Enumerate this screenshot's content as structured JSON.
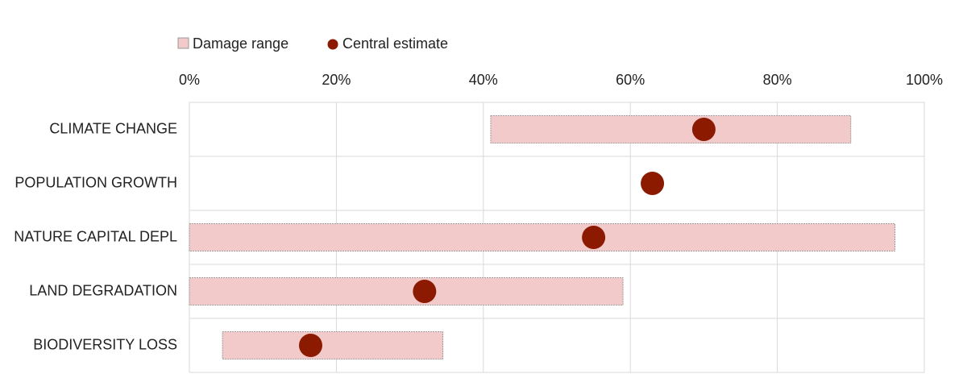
{
  "chart_data": {
    "type": "range",
    "categories": [
      "CLIMATE CHANGE",
      "POPULATION GROWTH",
      "NATURE CAPITAL DEPL",
      "LAND DEGRADATION",
      "BIODIVERSITY LOSS"
    ],
    "series": [
      {
        "name": "Damage range",
        "color": "#f2caca",
        "low": [
          41,
          null,
          0,
          0,
          4.5
        ],
        "high": [
          90,
          null,
          96,
          59,
          34.5
        ]
      },
      {
        "name": "Central estimate",
        "color": "#8b1a00",
        "values": [
          70,
          63,
          55,
          32,
          16.5
        ]
      }
    ],
    "xlim": [
      0,
      100
    ],
    "xticks": [
      {
        "value": 0,
        "label": "0%"
      },
      {
        "value": 20,
        "label": "20%"
      },
      {
        "value": 40,
        "label": "40%"
      },
      {
        "value": 60,
        "label": "60%"
      },
      {
        "value": 80,
        "label": "80%"
      },
      {
        "value": 100,
        "label": "100%"
      }
    ],
    "grid": true,
    "legend": "top"
  }
}
